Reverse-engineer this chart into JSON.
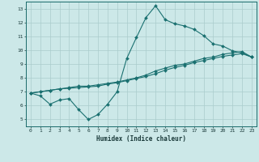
{
  "xlabel": "Humidex (Indice chaleur)",
  "ylabel": "",
  "background_color": "#cce8e8",
  "grid_color": "#aacccc",
  "line_color": "#1a7070",
  "xlim": [
    -0.5,
    23.5
  ],
  "ylim": [
    4.5,
    13.5
  ],
  "xticks": [
    0,
    1,
    2,
    3,
    4,
    5,
    6,
    7,
    8,
    9,
    10,
    11,
    12,
    13,
    14,
    15,
    16,
    17,
    18,
    19,
    20,
    21,
    22,
    23
  ],
  "yticks": [
    5,
    6,
    7,
    8,
    9,
    10,
    11,
    12,
    13
  ],
  "line1_x": [
    0,
    1,
    2,
    3,
    4,
    5,
    6,
    7,
    8,
    9,
    10,
    11,
    12,
    13,
    14,
    15,
    16,
    17,
    18,
    19,
    20,
    21,
    22,
    23
  ],
  "line1_y": [
    6.9,
    6.7,
    6.1,
    6.4,
    6.5,
    5.7,
    5.0,
    5.35,
    6.1,
    7.0,
    9.4,
    10.9,
    12.35,
    13.2,
    12.2,
    11.9,
    11.75,
    11.5,
    11.05,
    10.45,
    10.3,
    9.95,
    9.8,
    9.5
  ],
  "line2_x": [
    0,
    1,
    2,
    3,
    4,
    5,
    6,
    7,
    8,
    9,
    10,
    11,
    12,
    13,
    14,
    15,
    16,
    17,
    18,
    19,
    20,
    21,
    22,
    23
  ],
  "line2_y": [
    6.9,
    7.0,
    7.1,
    7.2,
    7.3,
    7.4,
    7.4,
    7.5,
    7.6,
    7.7,
    7.85,
    8.0,
    8.2,
    8.5,
    8.7,
    8.9,
    9.0,
    9.2,
    9.4,
    9.5,
    9.7,
    9.8,
    9.9,
    9.5
  ],
  "line3_x": [
    0,
    1,
    2,
    3,
    4,
    5,
    6,
    7,
    8,
    9,
    10,
    11,
    12,
    13,
    14,
    15,
    16,
    17,
    18,
    19,
    20,
    21,
    22,
    23
  ],
  "line3_y": [
    6.9,
    7.0,
    7.1,
    7.2,
    7.25,
    7.3,
    7.35,
    7.4,
    7.55,
    7.65,
    7.8,
    7.95,
    8.1,
    8.3,
    8.55,
    8.75,
    8.9,
    9.1,
    9.25,
    9.4,
    9.55,
    9.65,
    9.75,
    9.5
  ]
}
